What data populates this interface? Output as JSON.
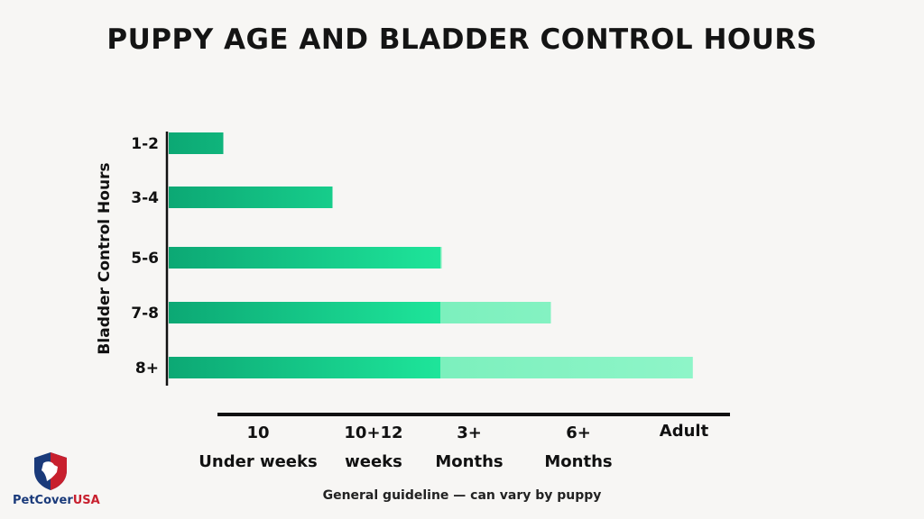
{
  "chart_data": {
    "type": "bar",
    "orientation": "horizontal",
    "title": "PUPPY AGE AND BLADDER CONTROL HOURS",
    "ylabel": "Bladder Control Hours",
    "xlabel": "",
    "categories": [
      "1-2",
      "3-4",
      "5-6",
      "7-8",
      "8+"
    ],
    "x_tick_labels": [
      "10\nUnder weeks",
      "10+12\nweeks",
      "3+\nMonths",
      "6+\nMonths",
      "Adult"
    ],
    "x_tick_positions": [
      1,
      2,
      3,
      4,
      5
    ],
    "values": [
      0.5,
      1.5,
      2.5,
      3.5,
      4.8
    ],
    "xlim": [
      0,
      5
    ],
    "bar_colors": [
      "#0ca874",
      "#1ee59a",
      "#8ef5c8"
    ],
    "grid": false,
    "legend": "none"
  },
  "footnote": "General guideline — can vary by puppy",
  "logo": {
    "name_part1": "PetCover",
    "name_part2": "USA",
    "colors": {
      "navy": "#1a3a7a",
      "red": "#c8202e"
    }
  }
}
